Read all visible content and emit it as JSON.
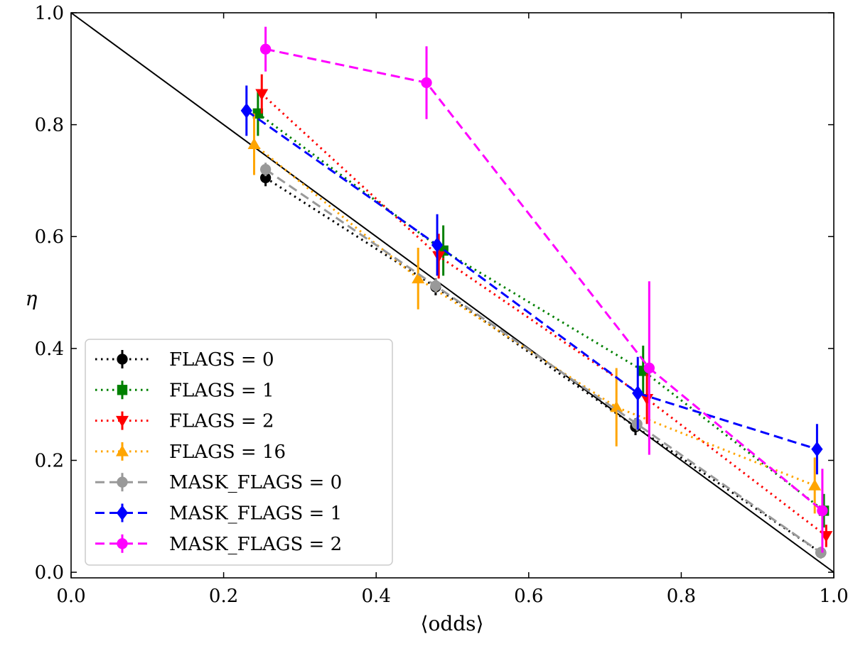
{
  "chart_data": {
    "type": "line",
    "title": "",
    "xlabel": "⟨odds⟩",
    "ylabel": "η",
    "xlim": [
      0.0,
      1.0
    ],
    "ylim": [
      -0.01,
      1.0
    ],
    "xticks": [
      0.0,
      0.2,
      0.4,
      0.6,
      0.8,
      1.0
    ],
    "yticks": [
      0.0,
      0.2,
      0.4,
      0.6,
      0.8,
      1.0
    ],
    "xtick_labels": [
      "0.0",
      "0.2",
      "0.4",
      "0.6",
      "0.8",
      "1.0"
    ],
    "ytick_labels": [
      "0.0",
      "0.2",
      "0.4",
      "0.6",
      "0.8",
      "1.0"
    ],
    "grid": false,
    "legend_position": "lower-left",
    "reference_line": {
      "name": "identity",
      "x": [
        0.0,
        1.0
      ],
      "y": [
        1.0,
        0.0
      ],
      "color": "#000000"
    },
    "series": [
      {
        "name": "FLAGS = 0",
        "color": "#000000",
        "marker": "circle",
        "dash": "dotted",
        "x": [
          0.255,
          0.478,
          0.74,
          0.983
        ],
        "y": [
          0.705,
          0.51,
          0.26,
          0.035
        ],
        "err": [
          0.015,
          0.015,
          0.015,
          0.01
        ]
      },
      {
        "name": "FLAGS = 1",
        "color": "#008000",
        "marker": "square",
        "dash": "dotted",
        "x": [
          0.245,
          0.488,
          0.75,
          0.987
        ],
        "y": [
          0.82,
          0.575,
          0.36,
          0.11
        ],
        "err": [
          0.04,
          0.045,
          0.045,
          0.03
        ]
      },
      {
        "name": "FLAGS = 2",
        "color": "#ff0000",
        "marker": "triangle-down",
        "dash": "dotted",
        "x": [
          0.25,
          0.482,
          0.755,
          0.99
        ],
        "y": [
          0.855,
          0.565,
          0.31,
          0.065
        ],
        "err": [
          0.035,
          0.04,
          0.045,
          0.02
        ]
      },
      {
        "name": "FLAGS = 16",
        "color": "#ffa500",
        "marker": "triangle-up",
        "dash": "dotted",
        "x": [
          0.24,
          0.455,
          0.715,
          0.975
        ],
        "y": [
          0.765,
          0.525,
          0.295,
          0.155
        ],
        "err": [
          0.055,
          0.055,
          0.07,
          0.05
        ]
      },
      {
        "name": "MASK_FLAGS = 0",
        "color": "#999999",
        "marker": "circle",
        "dash": "dashed",
        "x": [
          0.255,
          0.478,
          0.742,
          0.983
        ],
        "y": [
          0.72,
          0.512,
          0.265,
          0.035
        ],
        "err": [
          0.012,
          0.012,
          0.012,
          0.008
        ]
      },
      {
        "name": "MASK_FLAGS = 1",
        "color": "#0000ff",
        "marker": "diamond",
        "dash": "dashed",
        "x": [
          0.23,
          0.48,
          0.743,
          0.978
        ],
        "y": [
          0.825,
          0.585,
          0.32,
          0.22
        ],
        "err": [
          0.045,
          0.055,
          0.065,
          0.045
        ]
      },
      {
        "name": "MASK_FLAGS = 2",
        "color": "#ff00ff",
        "marker": "circle",
        "dash": "dashed",
        "x": [
          0.255,
          0.466,
          0.758,
          0.985
        ],
        "y": [
          0.935,
          0.875,
          0.365,
          0.11
        ],
        "err": [
          0.04,
          0.065,
          0.155,
          0.075
        ]
      }
    ]
  }
}
